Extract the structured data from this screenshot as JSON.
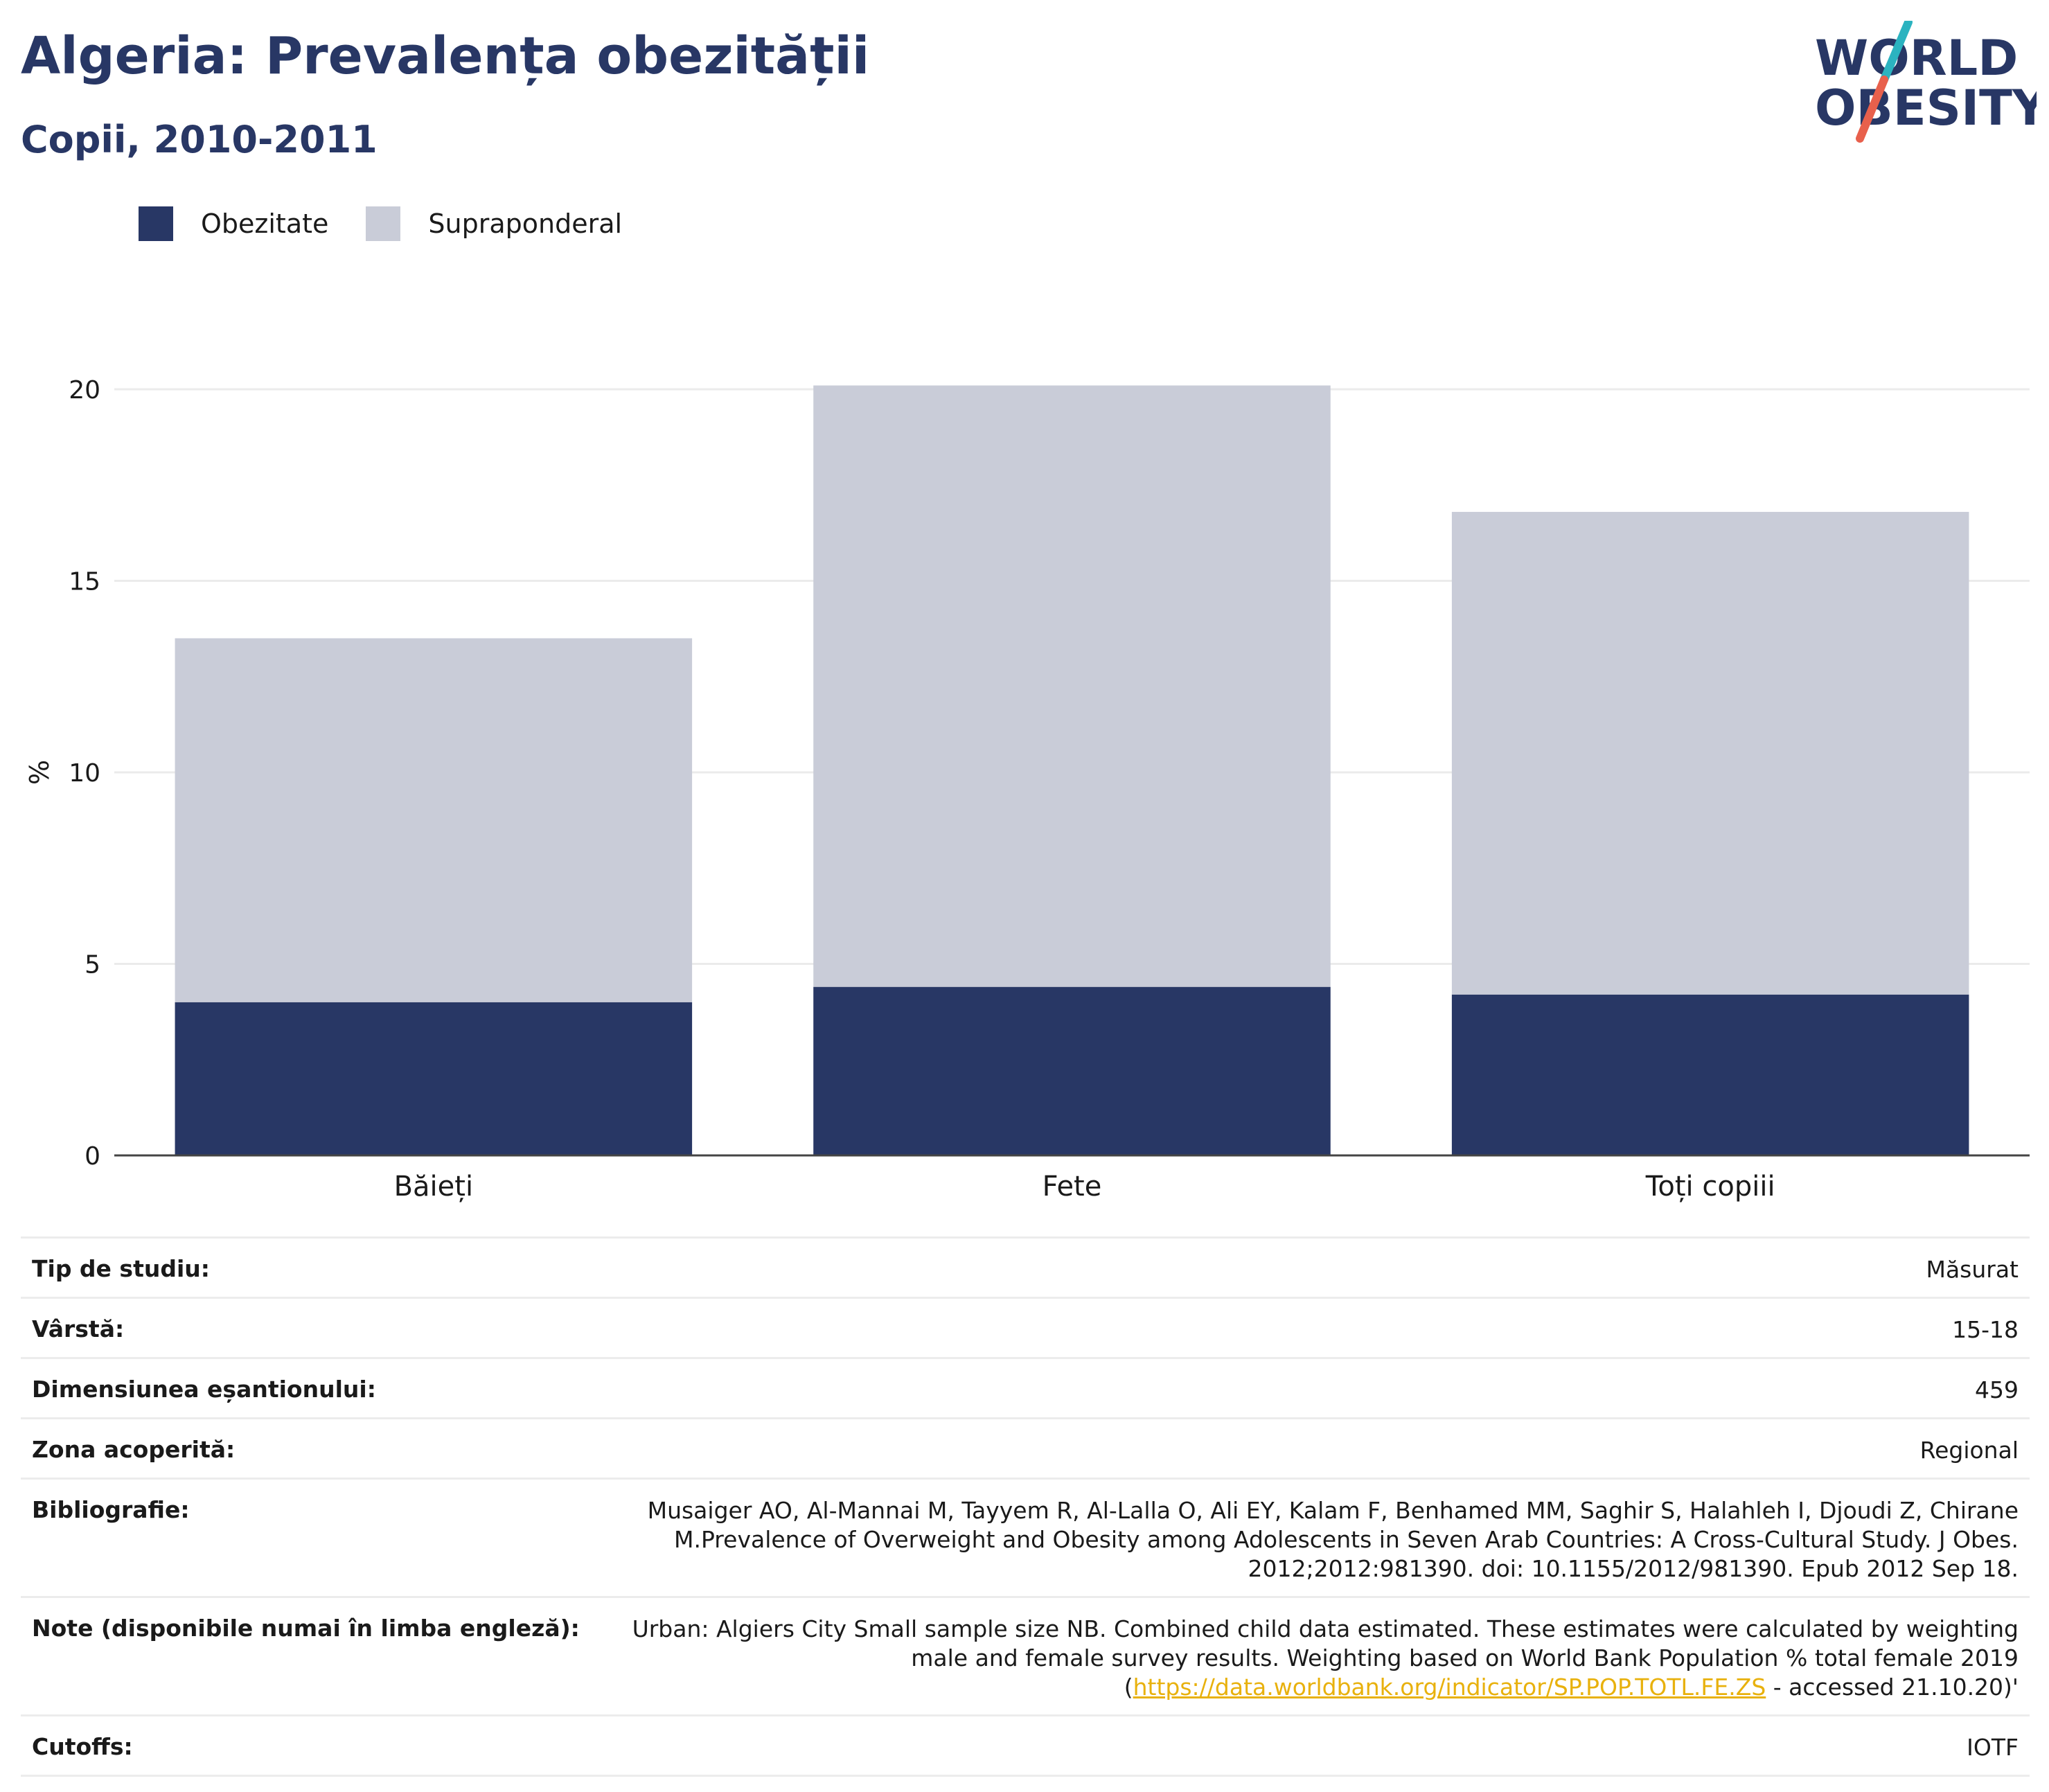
{
  "header": {
    "title": "Algeria: Prevalența obezității",
    "subtitle": "Copii, 2010-2011"
  },
  "logo": {
    "line1": "WORLD",
    "line2": "OBESITY",
    "slash_colors": [
      "#2bb3c0",
      "#e8604c"
    ]
  },
  "legend": [
    {
      "label": "Obezitate",
      "color": "#283765"
    },
    {
      "label": "Supraponderal",
      "color": "#c9ccd8"
    }
  ],
  "chart_data": {
    "type": "bar",
    "stacked": true,
    "categories": [
      "Băieți",
      "Fete",
      "Toți copiii"
    ],
    "series": [
      {
        "name": "Obezitate",
        "values": [
          4.0,
          4.4,
          4.2
        ],
        "color": "#283765"
      },
      {
        "name": "Supraponderal",
        "values": [
          9.5,
          15.7,
          12.6
        ],
        "color": "#c9ccd8"
      }
    ],
    "ylabel": "%",
    "ylim": [
      0,
      20.5
    ],
    "yticks": [
      0,
      5,
      10,
      15,
      20
    ],
    "grid": true,
    "legend_position": "top-left"
  },
  "info": [
    {
      "label": "Tip de studiu:",
      "value": "Măsurat"
    },
    {
      "label": "Vârstă:",
      "value": "15-18"
    },
    {
      "label": "Dimensiunea eșantionului:",
      "value": "459"
    },
    {
      "label": "Zona acoperită:",
      "value": "Regional"
    },
    {
      "label": "Bibliografie:",
      "value": "Musaiger AO, Al-Mannai M, Tayyem R, Al-Lalla O, Ali EY, Kalam F, Benhamed MM, Saghir S, Halahleh I, Djoudi Z, Chirane M.Prevalence of Overweight and Obesity among Adolescents in Seven Arab Countries: A Cross-Cultural Study. J Obes. 2012;2012:981390. doi: 10.1155/2012/981390. Epub 2012 Sep 18."
    },
    {
      "label": "Note (disponibile numai în limba engleză):",
      "value": "Urban: Algiers City Small sample size NB. Combined child data estimated. These estimates were calculated by weighting male and female survey results. Weighting based on World Bank Population % total female 2019 (",
      "link": "https://data.worldbank.org/indicator/SP.POP.TOTL.FE.ZS",
      "value_after": " - accessed 21.10.20)'"
    },
    {
      "label": "Cutoffs:",
      "value": "IOTF"
    }
  ]
}
